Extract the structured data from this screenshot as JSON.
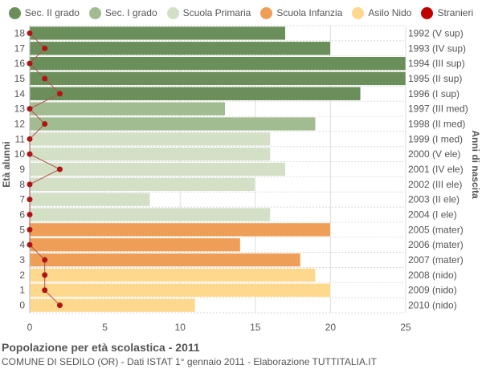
{
  "chart_data": {
    "type": "bar",
    "orientation": "horizontal",
    "title": "Popolazione per età scolastica - 2011",
    "subtitle": "COMUNE DI SEDILO (OR) - Dati ISTAT 1° gennaio 2011 - Elaborazione TUTTITALIA.IT",
    "ylabel_left": "Età alunni",
    "ylabel_right": "Anni di nascita",
    "xlim": [
      0,
      25
    ],
    "xticks": [
      0,
      5,
      10,
      15,
      20,
      25
    ],
    "grid": true,
    "legend_position": "top",
    "legend": [
      {
        "name": "Sec. II grado",
        "color": "#6b8f5a"
      },
      {
        "name": "Sec. I grado",
        "color": "#a2bc92"
      },
      {
        "name": "Scuola Primaria",
        "color": "#d4e0c6"
      },
      {
        "name": "Scuola Infanzia",
        "color": "#ee9e56"
      },
      {
        "name": "Asilo Nido",
        "color": "#fed88c"
      },
      {
        "name": "Stranieri",
        "color": "#c00000"
      }
    ],
    "rows": [
      {
        "age": "18",
        "birth": "1992 (V sup)",
        "value": 17,
        "stranieri": 0,
        "group": 0
      },
      {
        "age": "17",
        "birth": "1993 (IV sup)",
        "value": 20,
        "stranieri": 1,
        "group": 0
      },
      {
        "age": "16",
        "birth": "1994 (III sup)",
        "value": 25,
        "stranieri": 0,
        "group": 0
      },
      {
        "age": "15",
        "birth": "1995 (II sup)",
        "value": 25,
        "stranieri": 1,
        "group": 0
      },
      {
        "age": "14",
        "birth": "1996 (I sup)",
        "value": 22,
        "stranieri": 2,
        "group": 0
      },
      {
        "age": "13",
        "birth": "1997 (III med)",
        "value": 13,
        "stranieri": 0,
        "group": 1
      },
      {
        "age": "12",
        "birth": "1998 (II med)",
        "value": 19,
        "stranieri": 1,
        "group": 1
      },
      {
        "age": "11",
        "birth": "1999 (I med)",
        "value": 16,
        "stranieri": 0,
        "group": 2
      },
      {
        "age": "10",
        "birth": "2000 (V ele)",
        "value": 16,
        "stranieri": 0,
        "group": 2
      },
      {
        "age": "9",
        "birth": "2001 (IV ele)",
        "value": 17,
        "stranieri": 2,
        "group": 2
      },
      {
        "age": "8",
        "birth": "2002 (III ele)",
        "value": 15,
        "stranieri": 0,
        "group": 2
      },
      {
        "age": "7",
        "birth": "2003 (II ele)",
        "value": 8,
        "stranieri": 0,
        "group": 2
      },
      {
        "age": "6",
        "birth": "2004 (I ele)",
        "value": 16,
        "stranieri": 0,
        "group": 2
      },
      {
        "age": "5",
        "birth": "2005 (mater)",
        "value": 20,
        "stranieri": 0,
        "group": 3
      },
      {
        "age": "4",
        "birth": "2006 (mater)",
        "value": 14,
        "stranieri": 0,
        "group": 3
      },
      {
        "age": "3",
        "birth": "2007 (mater)",
        "value": 18,
        "stranieri": 1,
        "group": 3
      },
      {
        "age": "2",
        "birth": "2008 (nido)",
        "value": 19,
        "stranieri": 1,
        "group": 4
      },
      {
        "age": "1",
        "birth": "2009 (nido)",
        "value": 20,
        "stranieri": 1,
        "group": 4
      },
      {
        "age": "0",
        "birth": "2010 (nido)",
        "value": 11,
        "stranieri": 2,
        "group": 4
      }
    ]
  }
}
